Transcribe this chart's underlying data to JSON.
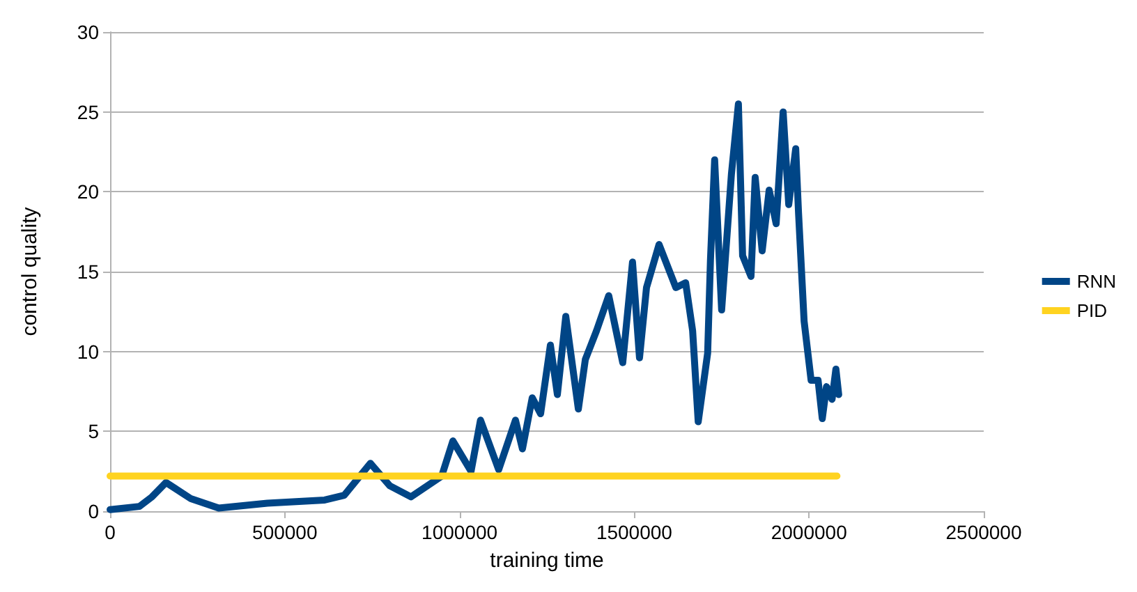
{
  "chart_data": {
    "type": "line",
    "xlabel": "training time",
    "ylabel": "control quality",
    "xlim": [
      0,
      2500000
    ],
    "xticks": [
      0,
      500000,
      1000000,
      1500000,
      2000000,
      2500000
    ],
    "ylim": [
      0,
      30
    ],
    "yticks": [
      0,
      5,
      10,
      15,
      20,
      25,
      30
    ],
    "grid": "y",
    "legend": "right",
    "marker": "none",
    "line_style": "solid",
    "series": [
      {
        "name": "RNN",
        "color": "#004586",
        "x": [
          0,
          84000,
          120000,
          160000,
          230000,
          311000,
          450000,
          614000,
          670000,
          745000,
          800000,
          861000,
          949000,
          981000,
          1033000,
          1060000,
          1112000,
          1160000,
          1180000,
          1208000,
          1232000,
          1260000,
          1280000,
          1304000,
          1340000,
          1360000,
          1392000,
          1427000,
          1467000,
          1495000,
          1515000,
          1535000,
          1571000,
          1619000,
          1647000,
          1667000,
          1683000,
          1710000,
          1718000,
          1730000,
          1750000,
          1778000,
          1798000,
          1810000,
          1834000,
          1846000,
          1866000,
          1886000,
          1906000,
          1926000,
          1942000,
          1962000,
          1970000,
          1986000,
          2006000,
          2026000,
          2038000,
          2050000,
          2066000,
          2077000,
          2085000
        ],
        "values": [
          0.1,
          0.3,
          0.9,
          1.8,
          0.8,
          0.2,
          0.5,
          0.7,
          1.0,
          3.0,
          1.6,
          0.9,
          2.2,
          4.4,
          2.5,
          5.7,
          2.6,
          5.7,
          3.9,
          7.1,
          6.1,
          10.4,
          7.3,
          12.2,
          6.4,
          9.5,
          11.3,
          13.5,
          9.3,
          15.6,
          9.6,
          14.0,
          16.7,
          14.0,
          14.3,
          11.3,
          5.6,
          9.9,
          15.7,
          22.0,
          12.6,
          21.1,
          25.5,
          16.0,
          14.7,
          20.9,
          16.3,
          20.1,
          18.0,
          25.0,
          19.2,
          22.7,
          18.7,
          11.9,
          8.2,
          8.2,
          5.8,
          7.8,
          7.0,
          8.9,
          7.3
        ]
      },
      {
        "name": "PID",
        "color": "#ffd320",
        "x": [
          0,
          2080000
        ],
        "values": [
          2.2,
          2.2
        ]
      }
    ]
  }
}
